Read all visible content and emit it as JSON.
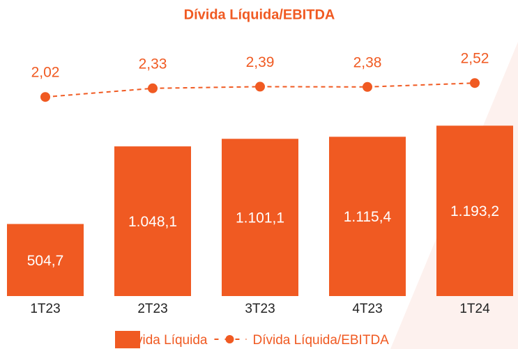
{
  "chart_data": {
    "type": "bar_line",
    "title": "Dívida Líquida/EBITDA",
    "categories": [
      "1T23",
      "2T23",
      "3T23",
      "4T23",
      "1T24"
    ],
    "series": [
      {
        "name": "Dívida Líquida",
        "type": "bar",
        "color": "#f05a22",
        "values": [
          504.7,
          1048.1,
          1101.1,
          1115.4,
          1193.2
        ],
        "value_labels": [
          "504,7",
          "1.048,1",
          "1.101,1",
          "1.115,4",
          "1.193,2"
        ]
      },
      {
        "name": "Dívida Líquida/EBITDA",
        "type": "line",
        "axis": "y2",
        "color": "#f05a22",
        "values": [
          2.02,
          2.33,
          2.39,
          2.38,
          2.52
        ],
        "value_labels": [
          "2,02",
          "2,33",
          "2,39",
          "2,38",
          "2,52"
        ]
      }
    ],
    "ylim": [
      0,
      1400
    ],
    "y2lim": [
      1.5,
      3.0
    ]
  }
}
